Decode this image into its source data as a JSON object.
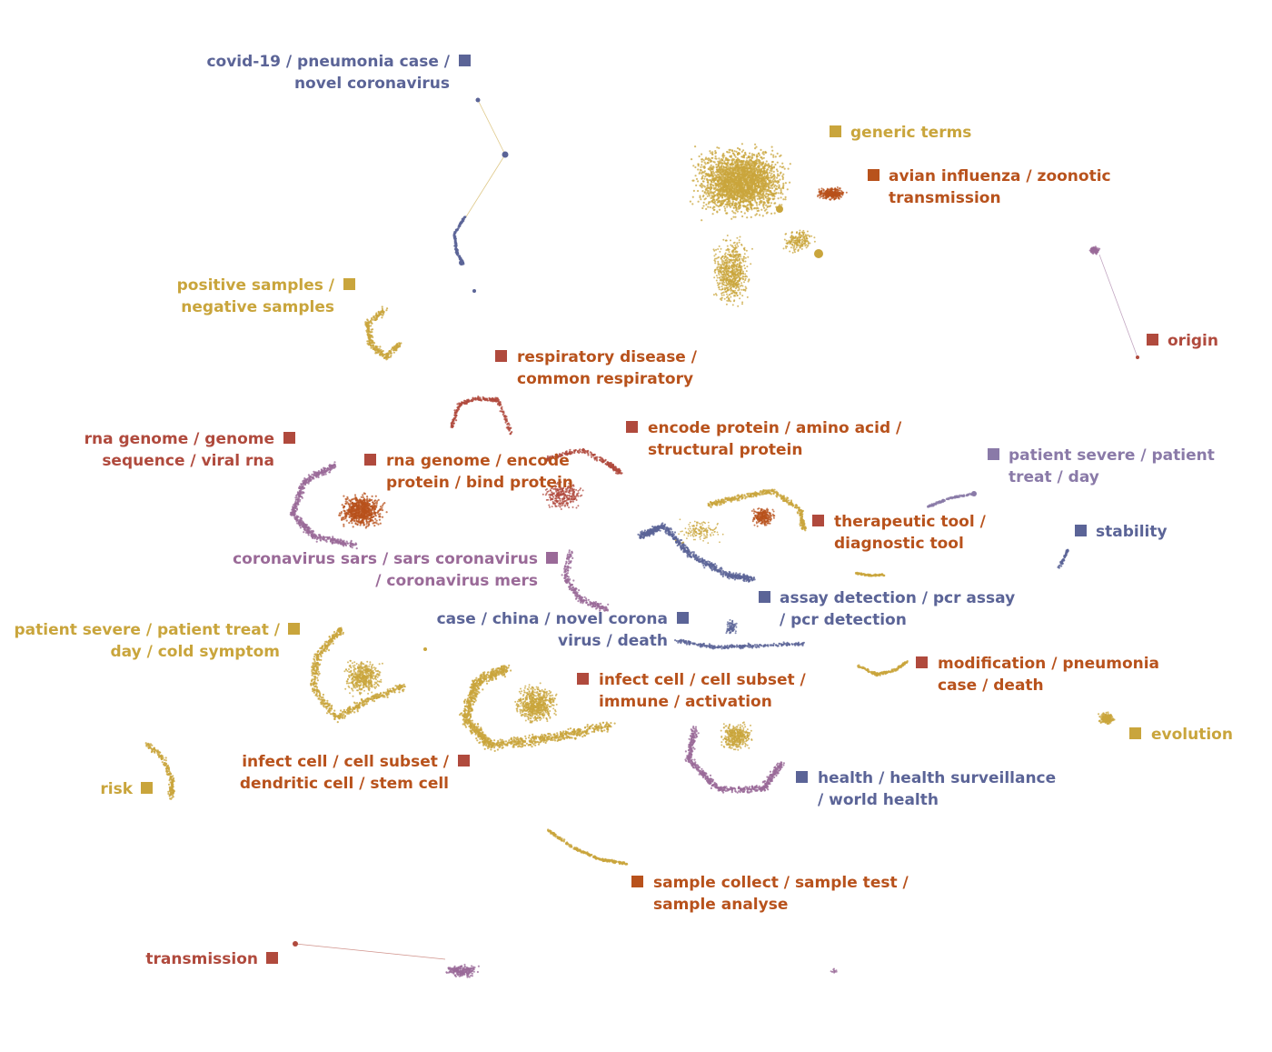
{
  "palette": {
    "yellow": "#c9a53c",
    "orange": "#b8521c",
    "red": "#b04a3d",
    "purple": "#9a6a98",
    "blue": "#5b6497",
    "lightpurple": "#8a7aa8"
  },
  "labels": [
    {
      "id": "covid-19",
      "lines": [
        "covid-19 / pneumonia case /",
        "novel coronavirus"
      ],
      "color": "blue"
    },
    {
      "id": "generic-terms",
      "lines": [
        "generic terms"
      ],
      "color": "yellow"
    },
    {
      "id": "avian-influenza",
      "lines": [
        "avian influenza / zoonotic",
        "transmission"
      ],
      "color": "orange"
    },
    {
      "id": "positive-samples",
      "lines": [
        "positive samples /",
        "negative samples"
      ],
      "color": "yellow"
    },
    {
      "id": "origin",
      "lines": [
        "origin"
      ],
      "color": "red"
    },
    {
      "id": "respiratory-disease",
      "lines": [
        "respiratory disease /",
        "common respiratory"
      ],
      "color": "orange"
    },
    {
      "id": "rna-genome-sequence",
      "lines": [
        "rna genome / genome",
        "sequence / viral rna"
      ],
      "color": "red"
    },
    {
      "id": "encode-protein",
      "lines": [
        "encode protein / amino acid /",
        "structural protein"
      ],
      "color": "orange"
    },
    {
      "id": "rna-genome-encode",
      "lines": [
        "rna genome / encode",
        "protein / bind protein"
      ],
      "color": "orange"
    },
    {
      "id": "patient-severe-treat-day",
      "lines": [
        "patient severe / patient",
        "treat / day"
      ],
      "color": "lightpurple"
    },
    {
      "id": "therapeutic-tool",
      "lines": [
        "therapeutic tool /",
        "diagnostic tool"
      ],
      "color": "orange"
    },
    {
      "id": "stability",
      "lines": [
        "stability"
      ],
      "color": "blue"
    },
    {
      "id": "coronavirus-sars",
      "lines": [
        "coronavirus sars / sars coronavirus",
        "/ coronavirus mers"
      ],
      "color": "purple"
    },
    {
      "id": "assay-detection",
      "lines": [
        "assay detection / pcr assay",
        "/ pcr detection"
      ],
      "color": "blue"
    },
    {
      "id": "case-china",
      "lines": [
        "case / china / novel corona",
        "virus / death"
      ],
      "color": "blue"
    },
    {
      "id": "patient-severe-cold",
      "lines": [
        "patient severe / patient treat /",
        "day / cold symptom"
      ],
      "color": "yellow"
    },
    {
      "id": "modification",
      "lines": [
        "modification / pneumonia",
        "case / death"
      ],
      "color": "orange"
    },
    {
      "id": "infect-cell-immune",
      "lines": [
        "infect cell / cell subset /",
        "immune / activation"
      ],
      "color": "orange"
    },
    {
      "id": "evolution",
      "lines": [
        "evolution"
      ],
      "color": "yellow"
    },
    {
      "id": "infect-cell-dendritic",
      "lines": [
        "infect cell / cell subset /",
        "dendritic cell / stem cell"
      ],
      "color": "orange"
    },
    {
      "id": "risk",
      "lines": [
        "risk"
      ],
      "color": "yellow"
    },
    {
      "id": "health",
      "lines": [
        "health / health surveillance",
        "/ world health"
      ],
      "color": "blue"
    },
    {
      "id": "sample-collect",
      "lines": [
        "sample collect / sample test /",
        "sample analyse"
      ],
      "color": "orange"
    },
    {
      "id": "transmission",
      "lines": [
        "transmission"
      ],
      "color": "red"
    }
  ]
}
